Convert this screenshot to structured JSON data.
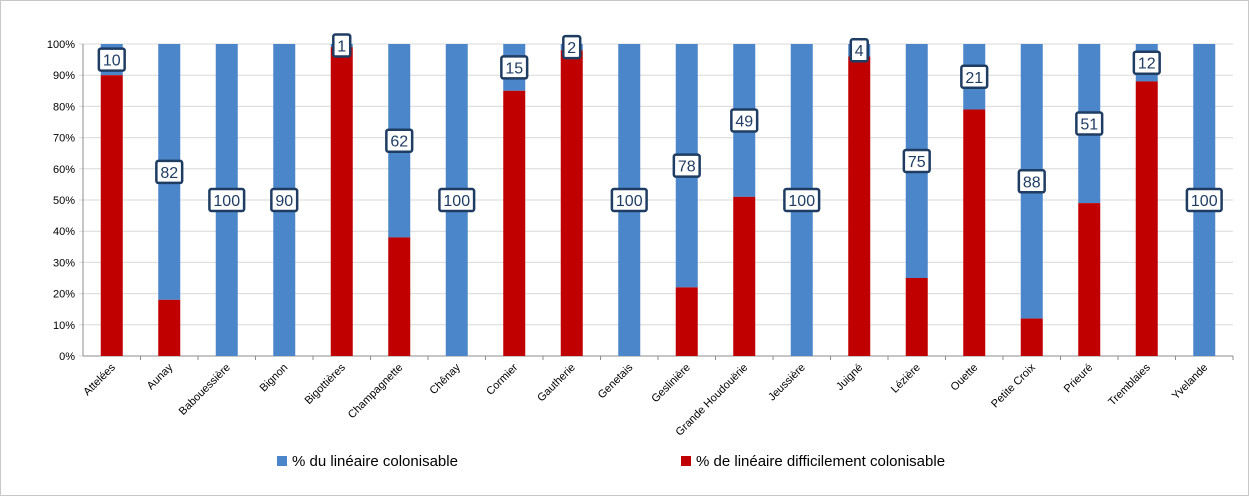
{
  "chart_data": {
    "type": "bar",
    "stacked": "percent",
    "categories": [
      "Attelées",
      "Aunay",
      "Babouessière",
      "Bignon",
      "Bigottières",
      "Champagnette",
      "Chênay",
      "Cormier",
      "Gautherie",
      "Genetais",
      "Geslinière",
      "Grande Houdouërie",
      "Jeussière",
      "Juigné",
      "Lézière",
      "Ouette",
      "Petite Croix",
      "Prieuré",
      "Tremblaies",
      "Yvelande"
    ],
    "series": [
      {
        "name": "% de linéaire difficilement colonisable",
        "color": "#c00000",
        "values": [
          90,
          18,
          0,
          0,
          99,
          38,
          0,
          85,
          98,
          0,
          22,
          51,
          0,
          96,
          25,
          79,
          12,
          49,
          88,
          0
        ]
      },
      {
        "name": "% du linéaire colonisable",
        "color": "#4a86c9",
        "values": [
          10,
          82,
          100,
          90,
          1,
          62,
          100,
          15,
          2,
          100,
          78,
          49,
          100,
          4,
          75,
          21,
          88,
          51,
          12,
          100
        ]
      }
    ],
    "data_labels": [
      "10",
      "82",
      "100",
      "90",
      "1",
      "62",
      "100",
      "15",
      "2",
      "100",
      "78",
      "49",
      "100",
      "4",
      "75",
      "21",
      "88",
      "51",
      "12",
      "100"
    ],
    "y_ticks": [
      "0%",
      "10%",
      "20%",
      "30%",
      "40%",
      "50%",
      "60%",
      "70%",
      "80%",
      "90%",
      "100%"
    ],
    "ylim": [
      0,
      100
    ],
    "grid": true,
    "legend": {
      "placement": "bottom",
      "entries": [
        "% du linéaire colonisable",
        "% de linéaire difficilement colonisable"
      ]
    }
  }
}
